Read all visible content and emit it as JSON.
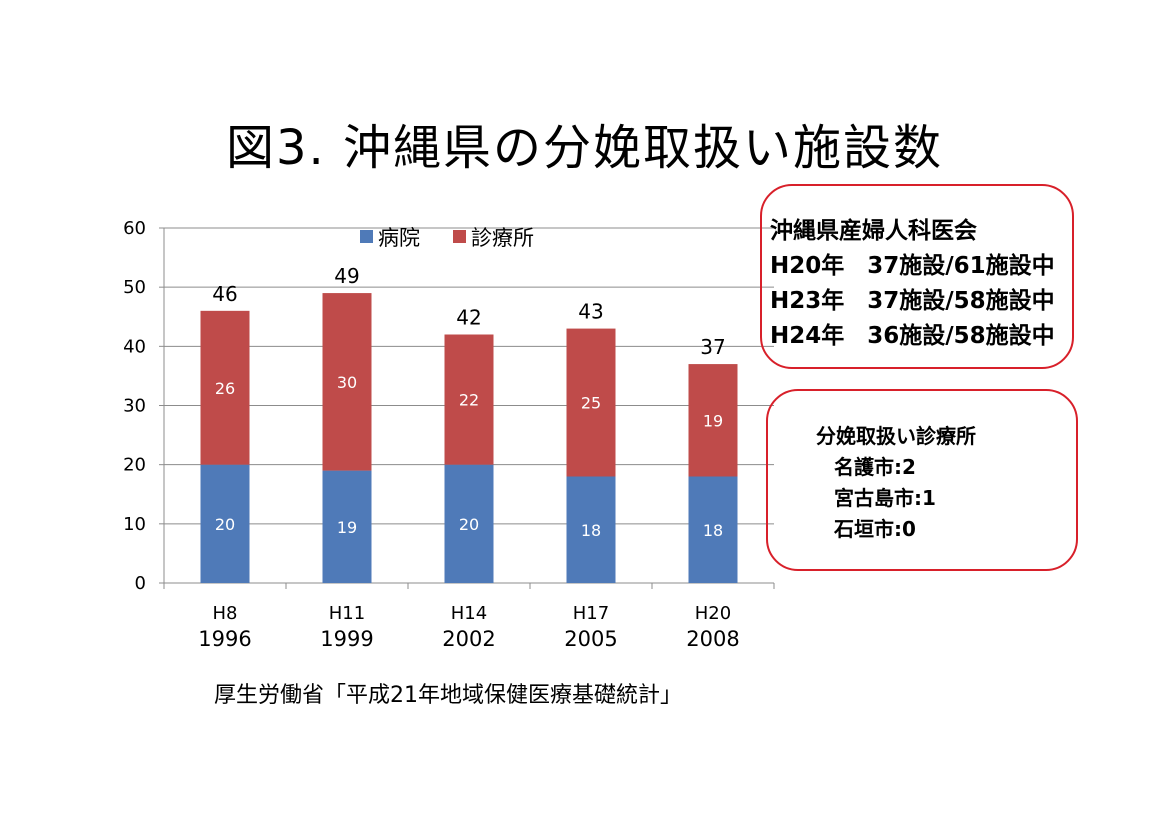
{
  "title": "図3. 沖縄県の分娩取扱い施設数",
  "chart_data": {
    "type": "bar",
    "stacked": true,
    "categories": [
      [
        "H8",
        "1996"
      ],
      [
        "H11",
        "1999"
      ],
      [
        "H14",
        "2002"
      ],
      [
        "H17",
        "2005"
      ],
      [
        "H20",
        "2008"
      ]
    ],
    "series": [
      {
        "name": "病院",
        "values": [
          20,
          19,
          20,
          18,
          18
        ],
        "color": "#4f7ab8"
      },
      {
        "name": "診療所",
        "values": [
          26,
          30,
          22,
          25,
          19
        ],
        "color": "#bf4b4a"
      }
    ],
    "totals": [
      46,
      49,
      42,
      43,
      37
    ],
    "ylim": [
      0,
      60
    ],
    "yticks": [
      0,
      10,
      20,
      30,
      40,
      50,
      60
    ],
    "grid": true,
    "legend_position": "top"
  },
  "info_box": {
    "title": "沖縄県産婦人科医会",
    "lines": [
      "H20年　37施設/61施設中",
      "H23年　37施設/58施設中",
      "H24年　36施設/58施設中"
    ]
  },
  "clinic_box": {
    "title": "分娩取扱い診療所",
    "items": [
      "名護市:2",
      "宮古島市:1",
      "石垣市:0"
    ]
  },
  "source": "厚生労働省「平成21年地域保健医療基礎統計」"
}
